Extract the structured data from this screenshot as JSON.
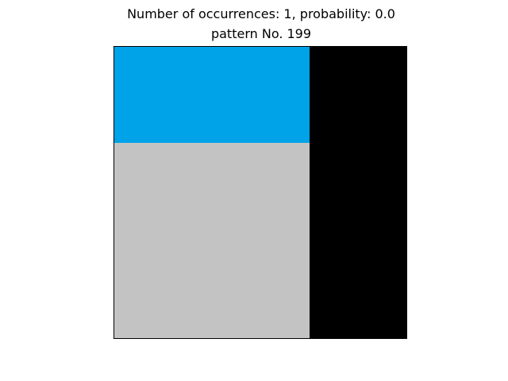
{
  "figure": {
    "title_line_1": "Number of occurrences: 1, probability: 0.0",
    "title_line_2": "pattern No. 199"
  },
  "pattern": {
    "grid_cells": [
      {
        "name": "top-left",
        "color": "#00A2E8"
      },
      {
        "name": "bottom-left",
        "color": "#C3C3C3"
      },
      {
        "name": "right-column",
        "color": "#000000"
      }
    ]
  }
}
